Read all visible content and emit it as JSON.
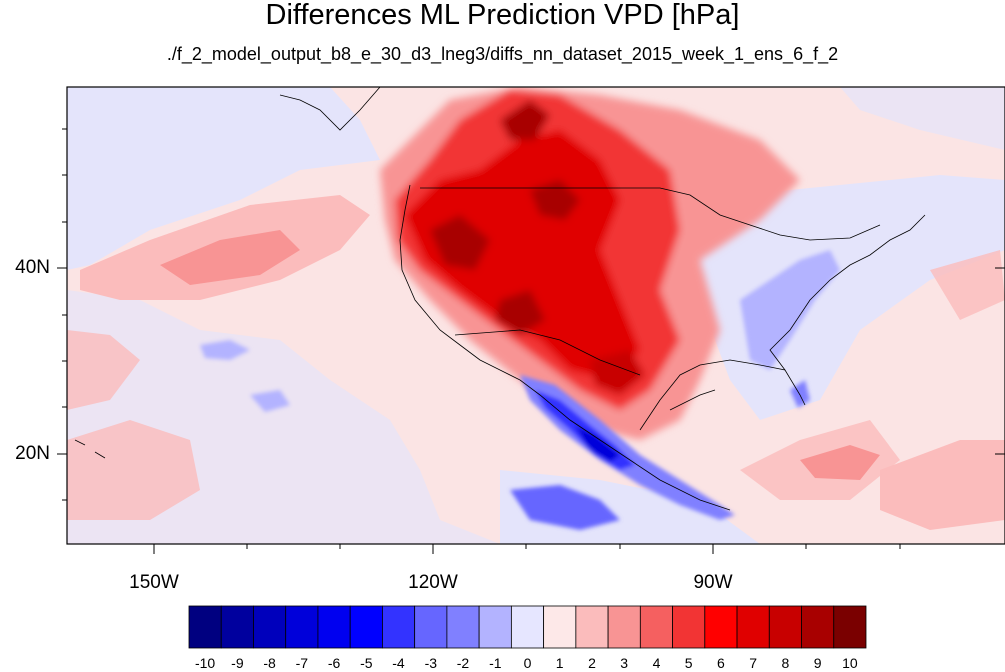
{
  "title": "Differences ML Prediction VPD [hPa]",
  "subtitle": "./f_2_model_output_b8_e_30_d3_lneg3/diffs_nn_dataset_2015_week_1_ens_6_f_2",
  "map": {
    "projection": "cylindrical equidistant",
    "lon_range": [
      -160,
      -60
    ],
    "lat_range": [
      10,
      59
    ],
    "lat_ticks": [
      {
        "value": 40,
        "label": "40N"
      },
      {
        "value": 20,
        "label": "20N"
      }
    ],
    "lon_ticks": [
      {
        "value": -150,
        "label": "150W"
      },
      {
        "value": -120,
        "label": "120W"
      },
      {
        "value": -90,
        "label": "90W"
      }
    ],
    "background_color": "#fbe4e4"
  },
  "colorbar": {
    "labels": [
      "-10",
      "-9",
      "-8",
      "-7",
      "-6",
      "-5",
      "-4",
      "-3",
      "-2",
      "-1",
      "0",
      "1",
      "2",
      "3",
      "4",
      "5",
      "6",
      "7",
      "8",
      "9",
      "10"
    ],
    "colors": [
      "#000080",
      "#00009e",
      "#0000bc",
      "#0000da",
      "#0000f0",
      "#0000ff",
      "#3333ff",
      "#6666ff",
      "#8080ff",
      "#b3b3ff",
      "#e6e6ff",
      "#fde8e8",
      "#fbbcbc",
      "#f89494",
      "#f56060",
      "#f23434",
      "#ff0000",
      "#e00000",
      "#c80000",
      "#a80000",
      "#7a0000"
    ]
  }
}
